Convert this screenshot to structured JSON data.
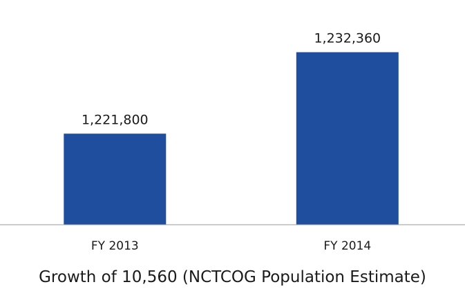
{
  "chart_data": {
    "type": "bar",
    "categories": [
      "FY 2013",
      "FY 2014"
    ],
    "values": [
      1221800,
      1232360
    ],
    "data_labels": [
      "1,221,800",
      "1,232,360"
    ],
    "xlabel": "Growth of 10,560 (NCTCOG Population Estimate)",
    "ylabel": "",
    "ylim": [
      1210000,
      1235000
    ],
    "grid": false,
    "legend": "none",
    "bar_color": "#1f4e9e",
    "axis_color": "#999999"
  }
}
